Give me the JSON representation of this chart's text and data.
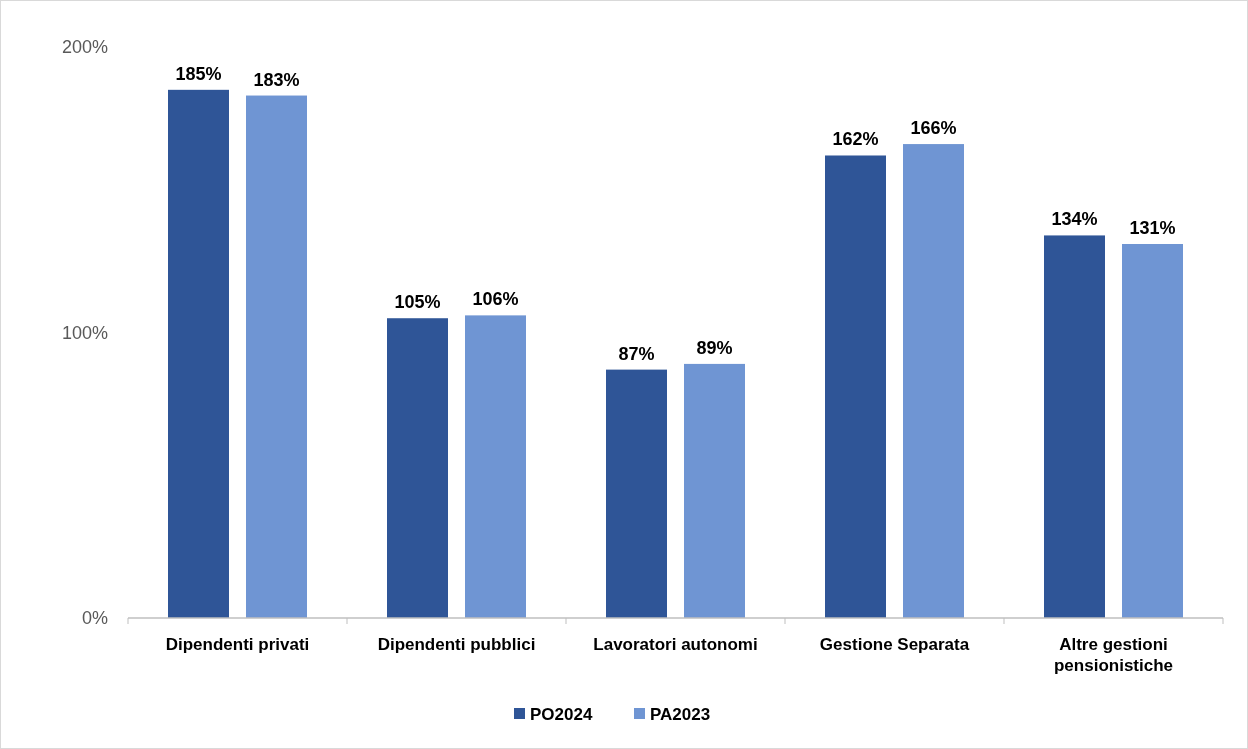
{
  "chart_data": {
    "type": "bar",
    "categories": [
      "Dipendenti privati",
      "Dipendenti pubblici",
      "Lavoratori autonomi",
      "Gestione Separata",
      "Altre gestioni pensionistiche"
    ],
    "series": [
      {
        "name": "PO2024",
        "color": "#2f5597",
        "values": [
          185,
          105,
          87,
          162,
          134
        ],
        "value_labels": [
          "185%",
          "105%",
          "87%",
          "162%",
          "134%"
        ]
      },
      {
        "name": "PA2023",
        "color": "#6f95d3",
        "values": [
          183,
          106,
          89,
          166,
          131
        ],
        "value_labels": [
          "183%",
          "106%",
          "89%",
          "166%",
          "131%"
        ]
      }
    ],
    "ylim": [
      0,
      200
    ],
    "yticks": [
      {
        "value": 0,
        "label": "0%"
      },
      {
        "value": 100,
        "label": "100%"
      },
      {
        "value": 200,
        "label": "200%"
      }
    ],
    "grid": false,
    "legend": "bottom"
  }
}
